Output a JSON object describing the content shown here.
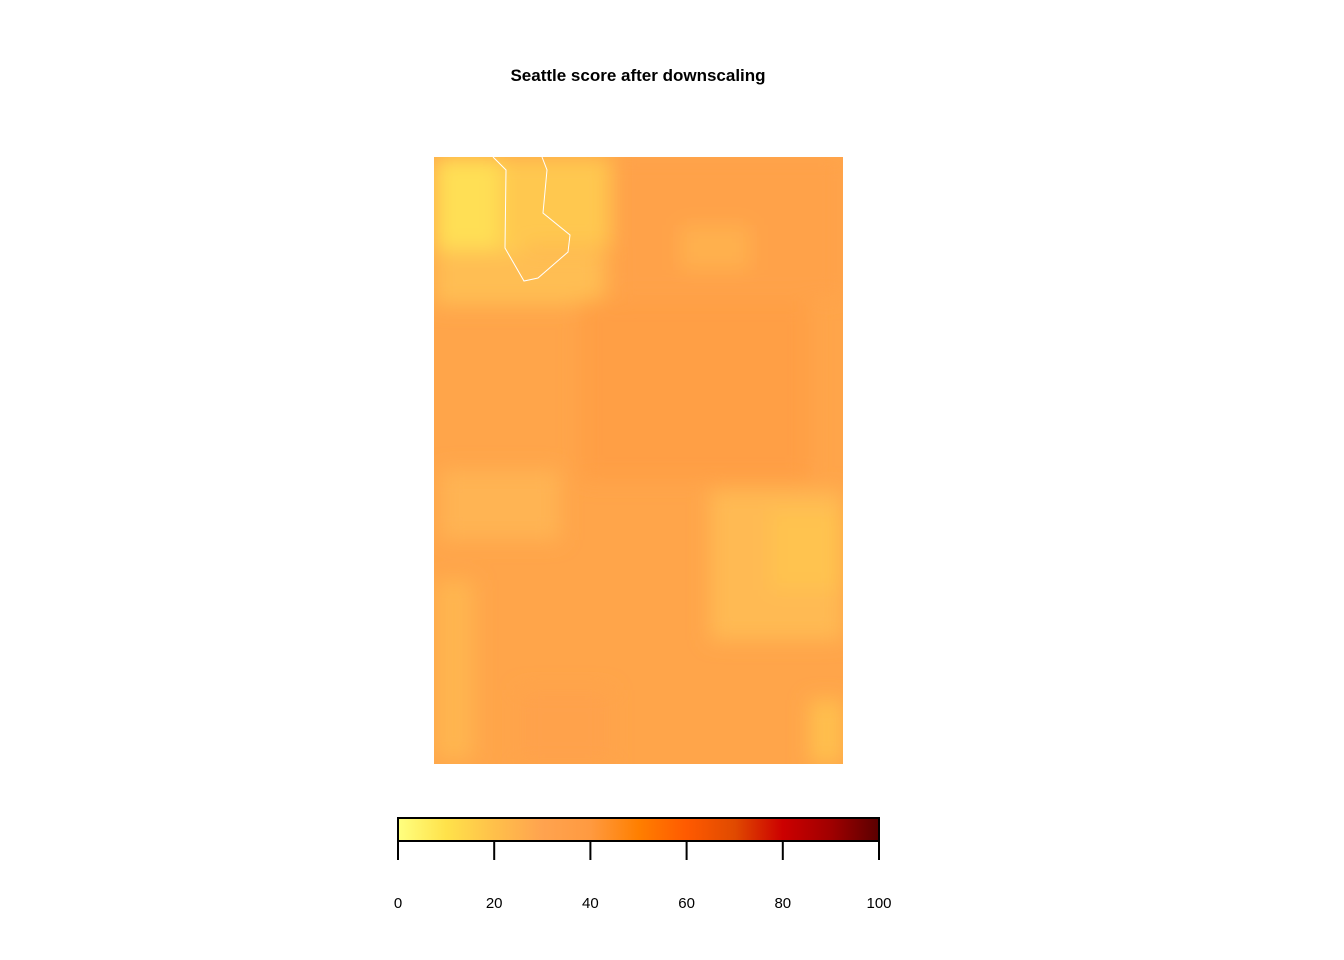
{
  "title": "Seattle score after downscaling",
  "legend": {
    "ticks": [
      "0",
      "20",
      "40",
      "60",
      "80",
      "100"
    ],
    "range": [
      0,
      100
    ],
    "palette": [
      "#ffff80",
      "#ffe24a",
      "#ffc04a",
      "#ffa34f",
      "#ff9a40",
      "#ff7f00",
      "#ff5a00",
      "#e04a00",
      "#cc0000",
      "#a00000",
      "#5a0000"
    ]
  },
  "boundary_color": "#ffffff"
}
